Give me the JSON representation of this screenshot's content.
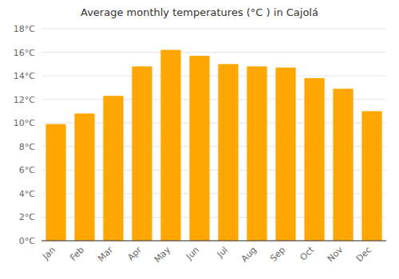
{
  "chart_data": {
    "type": "bar",
    "title": "Average monthly temperatures (°C ) in Cajolá",
    "categories": [
      "Jan",
      "Feb",
      "Mar",
      "Apr",
      "May",
      "Jun",
      "Jul",
      "Aug",
      "Sep",
      "Oct",
      "Nov",
      "Dec"
    ],
    "values": [
      9.9,
      10.8,
      12.3,
      14.8,
      16.2,
      15.7,
      15.0,
      14.8,
      14.7,
      13.8,
      12.9,
      11.0
    ],
    "color": "#FFA500",
    "ylim": [
      0,
      18
    ],
    "yticks": [
      {
        "value": 0,
        "label": "0°C"
      },
      {
        "value": 2,
        "label": "2°C"
      },
      {
        "value": 4,
        "label": "4°C"
      },
      {
        "value": 6,
        "label": "6°C"
      },
      {
        "value": 8,
        "label": "8°C"
      },
      {
        "value": 10,
        "label": "10°C"
      },
      {
        "value": 12,
        "label": "12°C"
      },
      {
        "value": 14,
        "label": "14°C"
      },
      {
        "value": 16,
        "label": "16°C"
      },
      {
        "value": 18,
        "label": "18°C"
      }
    ],
    "grid": true
  }
}
